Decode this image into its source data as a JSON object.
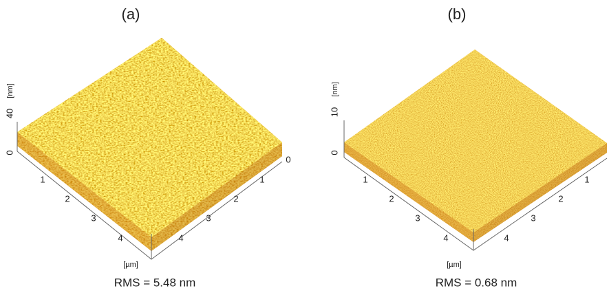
{
  "panels": [
    {
      "label": "(a)",
      "z_ticks": [
        "0",
        "40"
      ],
      "z_unit": "[nm]",
      "left_ticks": [
        "1",
        "2",
        "3",
        "4"
      ],
      "right_ticks": [
        "0",
        "1",
        "2",
        "3",
        "4"
      ],
      "xy_unit": "[µm]",
      "caption": "RMS = 5.48 nm"
    },
    {
      "label": "(b)",
      "z_ticks": [
        "0",
        "10"
      ],
      "z_unit": "[nm]",
      "left_ticks": [
        "1",
        "2",
        "3",
        "4"
      ],
      "right_ticks": [
        "1",
        "2",
        "3",
        "4"
      ],
      "xy_unit": "[µm]",
      "caption": "RMS = 0.68 nm"
    }
  ]
}
